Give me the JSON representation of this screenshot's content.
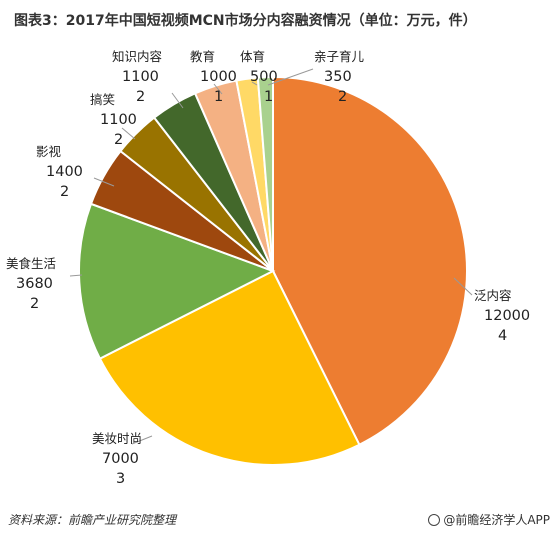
{
  "title": "图表3：2017年中国短视频MCN市场分内容融资情况（单位：万元，件）",
  "footer": {
    "source": "资料来源：前瞻产业研究院整理",
    "credit": "@前瞻经济学人APP"
  },
  "chart_data": {
    "type": "pie",
    "title": "图表3：2017年中国短视频MCN市场分内容融资情况（单位：万元，件）",
    "units": "万元，件",
    "slices": [
      {
        "name": "泛内容",
        "amount": "12000",
        "count": "4",
        "value": 12000,
        "color": "#ED7D31"
      },
      {
        "name": "美妆时尚",
        "amount": "7000",
        "count": "3",
        "value": 7000,
        "color": "#FFC000"
      },
      {
        "name": "美食生活",
        "amount": "3680",
        "count": "2",
        "value": 3680,
        "color": "#70AD47"
      },
      {
        "name": "影视",
        "amount": "1400",
        "count": "2",
        "value": 1400,
        "color": "#9E480E"
      },
      {
        "name": "搞笑",
        "amount": "1100",
        "count": "2",
        "value": 1100,
        "color": "#997300"
      },
      {
        "name": "知识内容",
        "amount": "1100",
        "count": "2",
        "value": 1100,
        "color": "#43682B"
      },
      {
        "name": "教育",
        "amount": "1000",
        "count": "1",
        "value": 1000,
        "color": "#F4B183"
      },
      {
        "name": "体育",
        "amount": "500",
        "count": "1",
        "value": 500,
        "color": "#FFD966"
      },
      {
        "name": "亲子育儿",
        "amount": "350",
        "count": "2",
        "value": 350,
        "color": "#A9D18E"
      }
    ]
  }
}
